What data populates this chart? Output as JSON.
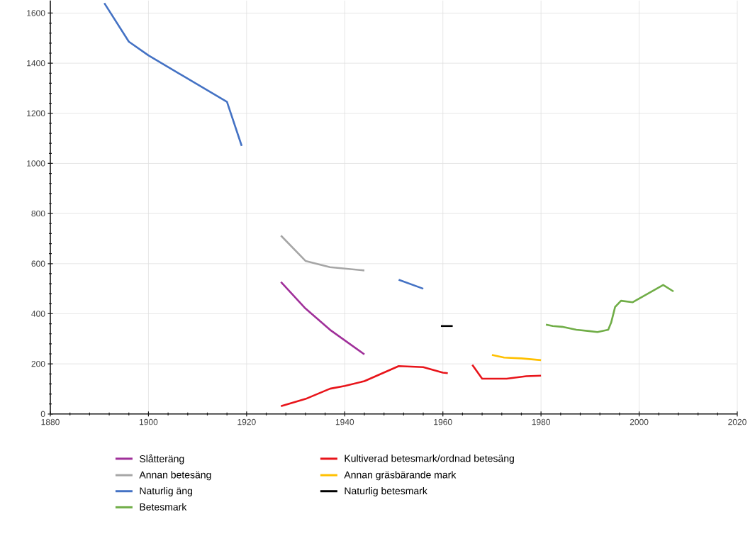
{
  "chart_data": {
    "type": "line",
    "xlim": [
      1880,
      2020
    ],
    "ylim": [
      0,
      1650
    ],
    "xticks": [
      1880,
      1900,
      1920,
      1940,
      1960,
      1980,
      2000,
      2020
    ],
    "yticks": [
      0,
      200,
      400,
      600,
      800,
      1000,
      1200,
      1400,
      1600
    ],
    "grid": true,
    "legend": "bottom",
    "marker": "none",
    "line_style": "solid",
    "series": [
      {
        "name": "Slåtteräng",
        "color": "#a0309a",
        "x": [
          1927,
          1932,
          1937,
          1944
        ],
        "values": [
          527,
          421,
          336,
          238
        ]
      },
      {
        "name": "Kultiverad betesmark/ordnad betesäng",
        "color": "#e8141a",
        "x": [
          1927,
          1932,
          1937,
          1940,
          1944,
          1951,
          1956,
          1960,
          1961,
          1963,
          1966,
          1968,
          1973,
          1977,
          1980
        ],
        "values": [
          31,
          60,
          101,
          112,
          131,
          191,
          187,
          165,
          163,
          null,
          196,
          141,
          141,
          151,
          153
        ]
      },
      {
        "name": "Annan betesäng",
        "color": "#a6a6a6",
        "x": [
          1927,
          1932,
          1937,
          1944
        ],
        "values": [
          712,
          611,
          586,
          573
        ]
      },
      {
        "name": "Annan gräsbärande mark",
        "color": "#ffc000",
        "x": [
          1970,
          1972.5,
          1976,
          1980
        ],
        "values": [
          236,
          225,
          222,
          215
        ]
      },
      {
        "name": "Naturlig äng",
        "color": "#4472c4",
        "x": [
          1891,
          1896,
          1900,
          1916,
          1919,
          1935,
          1951,
          1956
        ],
        "values": [
          1640,
          1486,
          1431,
          1246,
          1070,
          null,
          536,
          500
        ]
      },
      {
        "name": "Naturlig betesmark",
        "color": "#000000",
        "x": [
          1959.6,
          1962
        ],
        "values": [
          351,
          351
        ]
      },
      {
        "name": "Betesmark",
        "color": "#70ad47",
        "x": [
          1981,
          1982.4,
          1984.3,
          1987.2,
          1989.8,
          1991.5,
          1993.7,
          1994.3,
          1995.1,
          1996.3,
          1998.7,
          2004.9,
          2007
        ],
        "values": [
          357,
          351,
          348,
          336,
          331,
          327,
          336,
          365,
          427,
          452,
          446,
          515,
          489
        ]
      }
    ]
  }
}
